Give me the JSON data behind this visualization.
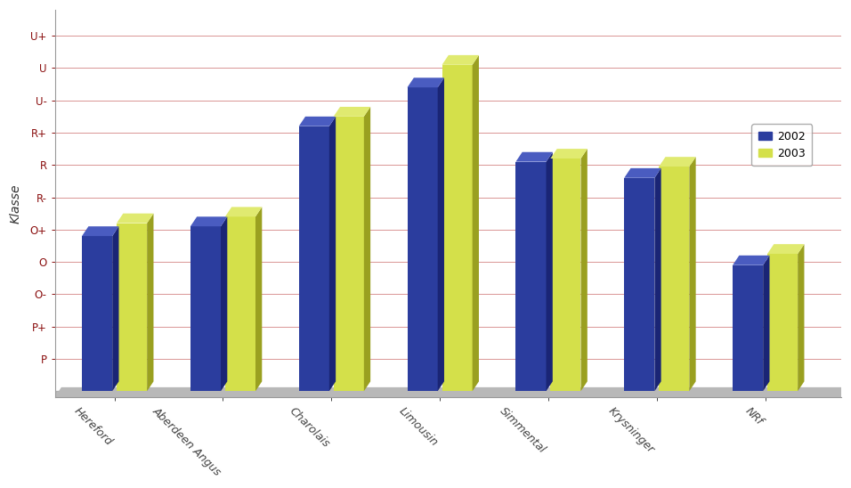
{
  "categories": [
    "Hereford",
    "Aberdeen Angus",
    "Charolais",
    "Limousin",
    "Simmental",
    "Krysninger",
    "NRf"
  ],
  "values_2002": [
    4.8,
    5.1,
    8.2,
    9.4,
    7.1,
    6.6,
    3.9
  ],
  "values_2003": [
    5.2,
    5.4,
    8.5,
    10.1,
    7.2,
    6.95,
    4.25
  ],
  "ytick_labels": [
    "P",
    "P+",
    "O-",
    "O",
    "O+",
    "R-",
    "R",
    "R+",
    "U-",
    "U",
    "U+"
  ],
  "ytick_values": [
    1,
    2,
    3,
    4,
    5,
    6,
    7,
    8,
    9,
    10,
    11
  ],
  "ylim": [
    0,
    11.8
  ],
  "ylabel": "Klasse",
  "color_2002": "#2B3D9E",
  "color_2003": "#D4E04A",
  "color_2002_top": "#4A5CC0",
  "color_2002_side": "#1A2575",
  "color_2003_top": "#E0EA70",
  "color_2003_side": "#9AA020",
  "bar_width": 0.28,
  "bar_gap": 0.04,
  "legend_labels": [
    "2002",
    "2003"
  ],
  "background_color": "#FFFFFF",
  "plot_bg_color": "#FFFFFF",
  "grid_color": "#C0504D",
  "grid_alpha": 0.6,
  "floor_color": "#A0A0A0",
  "xlabel_rotation": -45,
  "ylabel_fontsize": 10,
  "tick_fontsize": 8.5,
  "legend_fontsize": 9,
  "xlim_left": -0.55,
  "xlim_right": 6.7
}
